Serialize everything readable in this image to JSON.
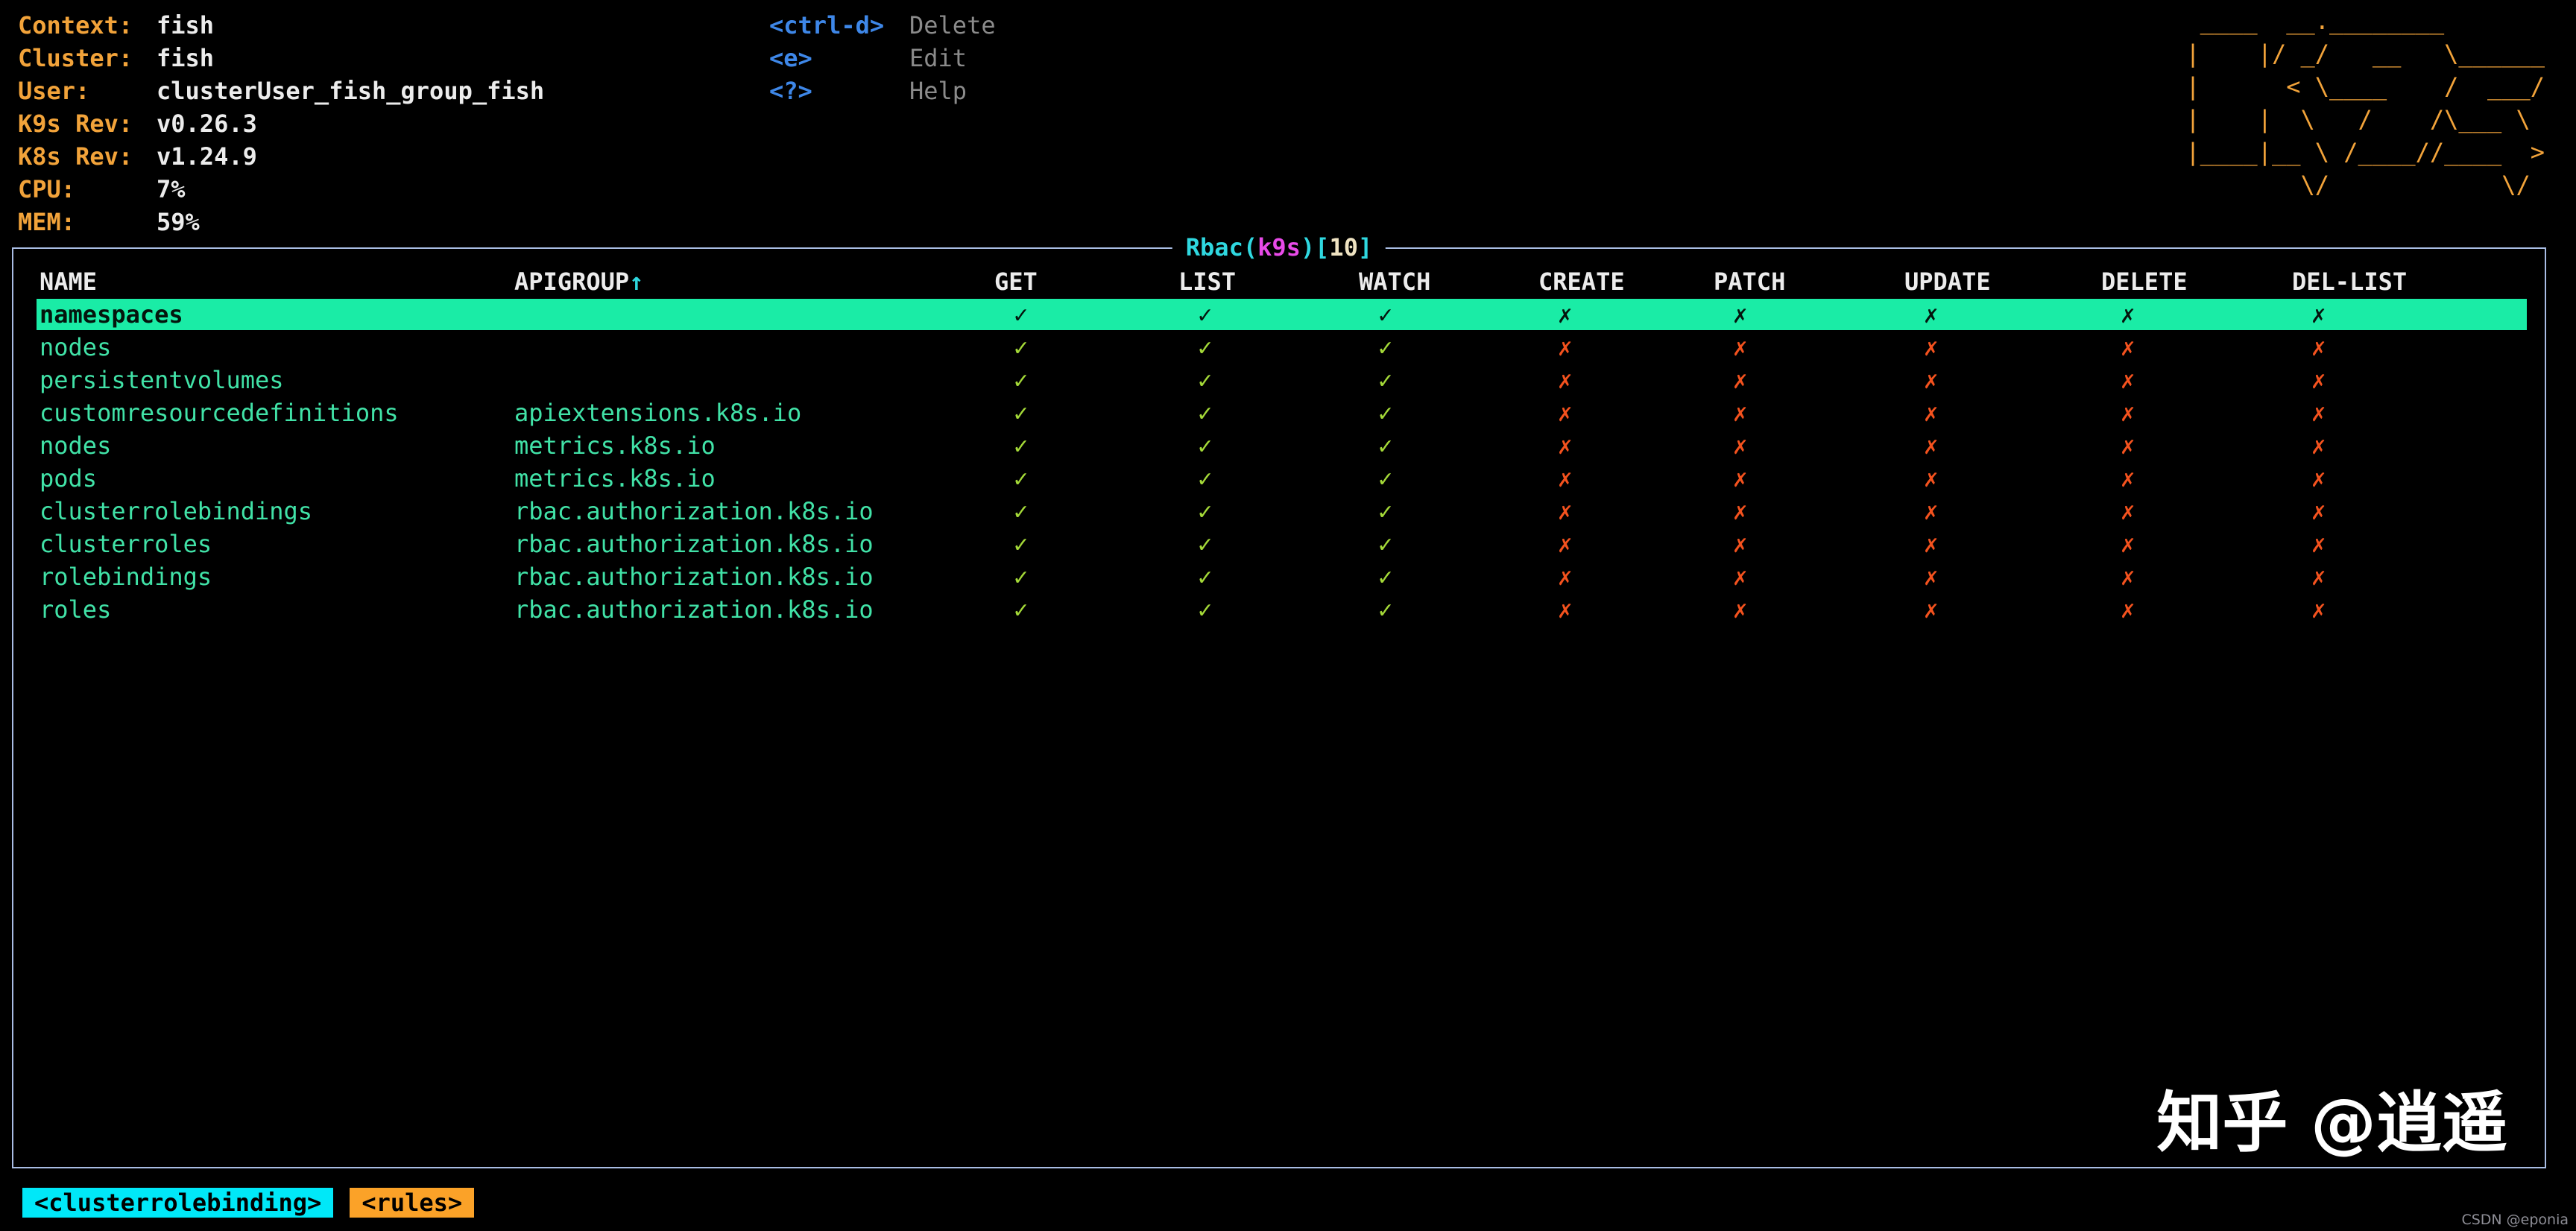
{
  "app": {
    "name": "k9s",
    "view": "Rbac"
  },
  "colors": {
    "background": "#000000",
    "label_orange": "#f2a33a",
    "value_white": "#ececec",
    "key_blue": "#3e87e8",
    "action_gray": "#8b8b8b",
    "title_cyan": "#2fd8e0",
    "title_magenta": "#e94ae9",
    "title_count_cream": "#efe3c2",
    "table_border_blue": "#a9bde4",
    "selected_row_bg_green": "#1aeca6",
    "row_text_green": "#41e2a7",
    "check_green": "#a4d938",
    "cross_orange_red": "#f4521e",
    "crumb_resource_bg_cyan": "#00e8f8",
    "crumb_view_bg_orange": "#fba228"
  },
  "cluster_info": [
    {
      "label": "Context:",
      "value": "fish"
    },
    {
      "label": "Cluster:",
      "value": "fish"
    },
    {
      "label": "User:",
      "value": "clusterUser_fish_group_fish"
    },
    {
      "label": "K9s Rev:",
      "value": "v0.26.3"
    },
    {
      "label": "K8s Rev:",
      "value": "v1.24.9"
    },
    {
      "label": "CPU:",
      "value": "7%"
    },
    {
      "label": "MEM:",
      "value": "59%"
    }
  ],
  "hotkeys": [
    {
      "key": "<ctrl-d>",
      "action": "Delete"
    },
    {
      "key": "<e>",
      "action": "Edit"
    },
    {
      "key": "<?>",
      "action": "Help"
    }
  ],
  "logo_lines": [
    " ____  __.________",
    "|    |/ _/   __   \\______",
    "|      < \\____    /  ___/",
    "|    |  \\   /    /\\___ \\",
    "|____|__ \\ /____//____  >",
    "        \\/            \\/"
  ],
  "table": {
    "title_parts": [
      {
        "text": "Rbac",
        "color": "cyan"
      },
      {
        "text": "(",
        "color": "cyan"
      },
      {
        "text": "k9s",
        "color": "magenta"
      },
      {
        "text": ")",
        "color": "cyan"
      },
      {
        "text": "[",
        "color": "cyan"
      },
      {
        "text": "10",
        "color": "count"
      },
      {
        "text": "]",
        "color": "cyan"
      }
    ],
    "columns": [
      {
        "label": "NAME"
      },
      {
        "label": "APIGROUP",
        "sorted": true,
        "sort_arrow": "↑"
      },
      {
        "label": "GET"
      },
      {
        "label": "LIST"
      },
      {
        "label": "WATCH"
      },
      {
        "label": "CREATE"
      },
      {
        "label": "PATCH"
      },
      {
        "label": "UPDATE"
      },
      {
        "label": "DELETE"
      },
      {
        "label": "DEL-LIST"
      }
    ],
    "marks": {
      "granted": "✓",
      "denied": "✗"
    },
    "rows": [
      {
        "name": "namespaces",
        "apigroup": "",
        "perms": [
          true,
          true,
          true,
          false,
          false,
          false,
          false,
          false
        ],
        "selected": true
      },
      {
        "name": "nodes",
        "apigroup": "",
        "perms": [
          true,
          true,
          true,
          false,
          false,
          false,
          false,
          false
        ]
      },
      {
        "name": "persistentvolumes",
        "apigroup": "",
        "perms": [
          true,
          true,
          true,
          false,
          false,
          false,
          false,
          false
        ]
      },
      {
        "name": "customresourcedefinitions",
        "apigroup": "apiextensions.k8s.io",
        "perms": [
          true,
          true,
          true,
          false,
          false,
          false,
          false,
          false
        ]
      },
      {
        "name": "nodes",
        "apigroup": "metrics.k8s.io",
        "perms": [
          true,
          true,
          true,
          false,
          false,
          false,
          false,
          false
        ]
      },
      {
        "name": "pods",
        "apigroup": "metrics.k8s.io",
        "perms": [
          true,
          true,
          true,
          false,
          false,
          false,
          false,
          false
        ]
      },
      {
        "name": "clusterrolebindings",
        "apigroup": "rbac.authorization.k8s.io",
        "perms": [
          true,
          true,
          true,
          false,
          false,
          false,
          false,
          false
        ]
      },
      {
        "name": "clusterroles",
        "apigroup": "rbac.authorization.k8s.io",
        "perms": [
          true,
          true,
          true,
          false,
          false,
          false,
          false,
          false
        ]
      },
      {
        "name": "rolebindings",
        "apigroup": "rbac.authorization.k8s.io",
        "perms": [
          true,
          true,
          true,
          false,
          false,
          false,
          false,
          false
        ]
      },
      {
        "name": "roles",
        "apigroup": "rbac.authorization.k8s.io",
        "perms": [
          true,
          true,
          true,
          false,
          false,
          false,
          false,
          false
        ]
      }
    ]
  },
  "breadcrumbs": [
    {
      "label": "<clusterrolebinding>",
      "bg": "#00e8f8"
    },
    {
      "label": "<rules>",
      "bg": "#fba228"
    }
  ],
  "watermark": {
    "text": "知乎 @逍遥"
  },
  "footer_note": {
    "text": "CSDN @eponia"
  }
}
